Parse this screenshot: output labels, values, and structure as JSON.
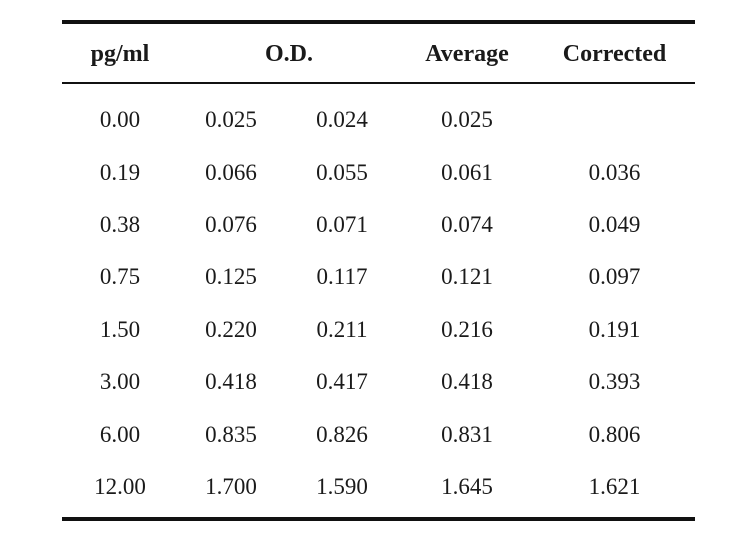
{
  "table": {
    "headers": {
      "concentration": "pg/ml",
      "od": "O.D.",
      "average": "Average",
      "corrected": "Corrected"
    },
    "rows": [
      [
        "0.00",
        "0.025",
        "0.024",
        "0.025",
        ""
      ],
      [
        "0.19",
        "0.066",
        "0.055",
        "0.061",
        "0.036"
      ],
      [
        "0.38",
        "0.076",
        "0.071",
        "0.074",
        "0.049"
      ],
      [
        "0.75",
        "0.125",
        "0.117",
        "0.121",
        "0.097"
      ],
      [
        "1.50",
        "0.220",
        "0.211",
        "0.216",
        "0.191"
      ],
      [
        "3.00",
        "0.418",
        "0.417",
        "0.418",
        "0.393"
      ],
      [
        "6.00",
        "0.835",
        "0.826",
        "0.831",
        "0.806"
      ],
      [
        "12.00",
        "1.700",
        "1.590",
        "1.645",
        "1.621"
      ]
    ]
  }
}
